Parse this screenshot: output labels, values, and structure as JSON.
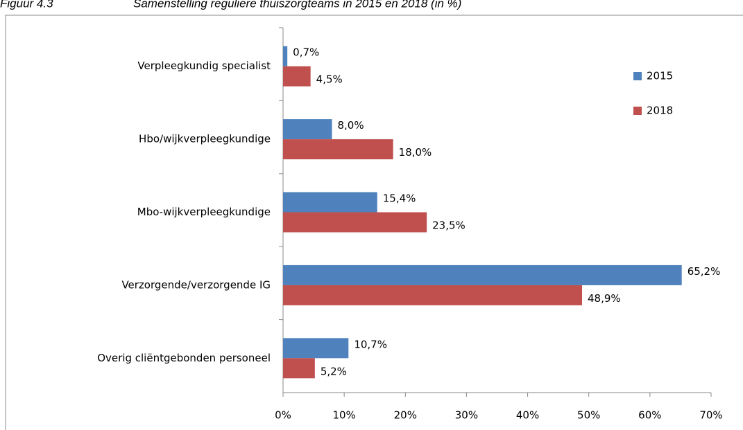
{
  "chart_data": {
    "type": "bar",
    "orientation": "horizontal",
    "title": "Figuur 4.3",
    "subtitle": "Samenstelling reguliere thuiszorgteams in 2015 en 2018 (in %)",
    "categories": [
      "Verpleegkundig specialist",
      "Hbo/wijkverpleegkundige",
      "Mbo-wijkverpleegkundige",
      "Verzorgende/verzorgende IG",
      "Overig cliëntgebonden personeel"
    ],
    "series": [
      {
        "name": "2015",
        "color": "#4f81bd",
        "values": [
          0.7,
          8.0,
          15.4,
          65.2,
          10.7
        ],
        "value_labels": [
          "0,7%",
          "8,0%",
          "15,4%",
          "65,2%",
          "10,7%"
        ]
      },
      {
        "name": "2018",
        "color": "#c0504d",
        "values": [
          4.5,
          18.0,
          23.5,
          48.9,
          5.2
        ],
        "value_labels": [
          "4,5%",
          "18,0%",
          "23,5%",
          "48,9%",
          "5,2%"
        ]
      }
    ],
    "xlim": [
      0,
      70
    ],
    "xticks": [
      {
        "value": 0,
        "label": "0%"
      },
      {
        "value": 10,
        "label": "10%"
      },
      {
        "value": 20,
        "label": "20%"
      },
      {
        "value": 30,
        "label": "30%"
      },
      {
        "value": 40,
        "label": "40%"
      },
      {
        "value": 50,
        "label": "50%"
      },
      {
        "value": 60,
        "label": "60%"
      },
      {
        "value": 70,
        "label": "70%"
      }
    ],
    "legend": "right",
    "grid": false
  }
}
